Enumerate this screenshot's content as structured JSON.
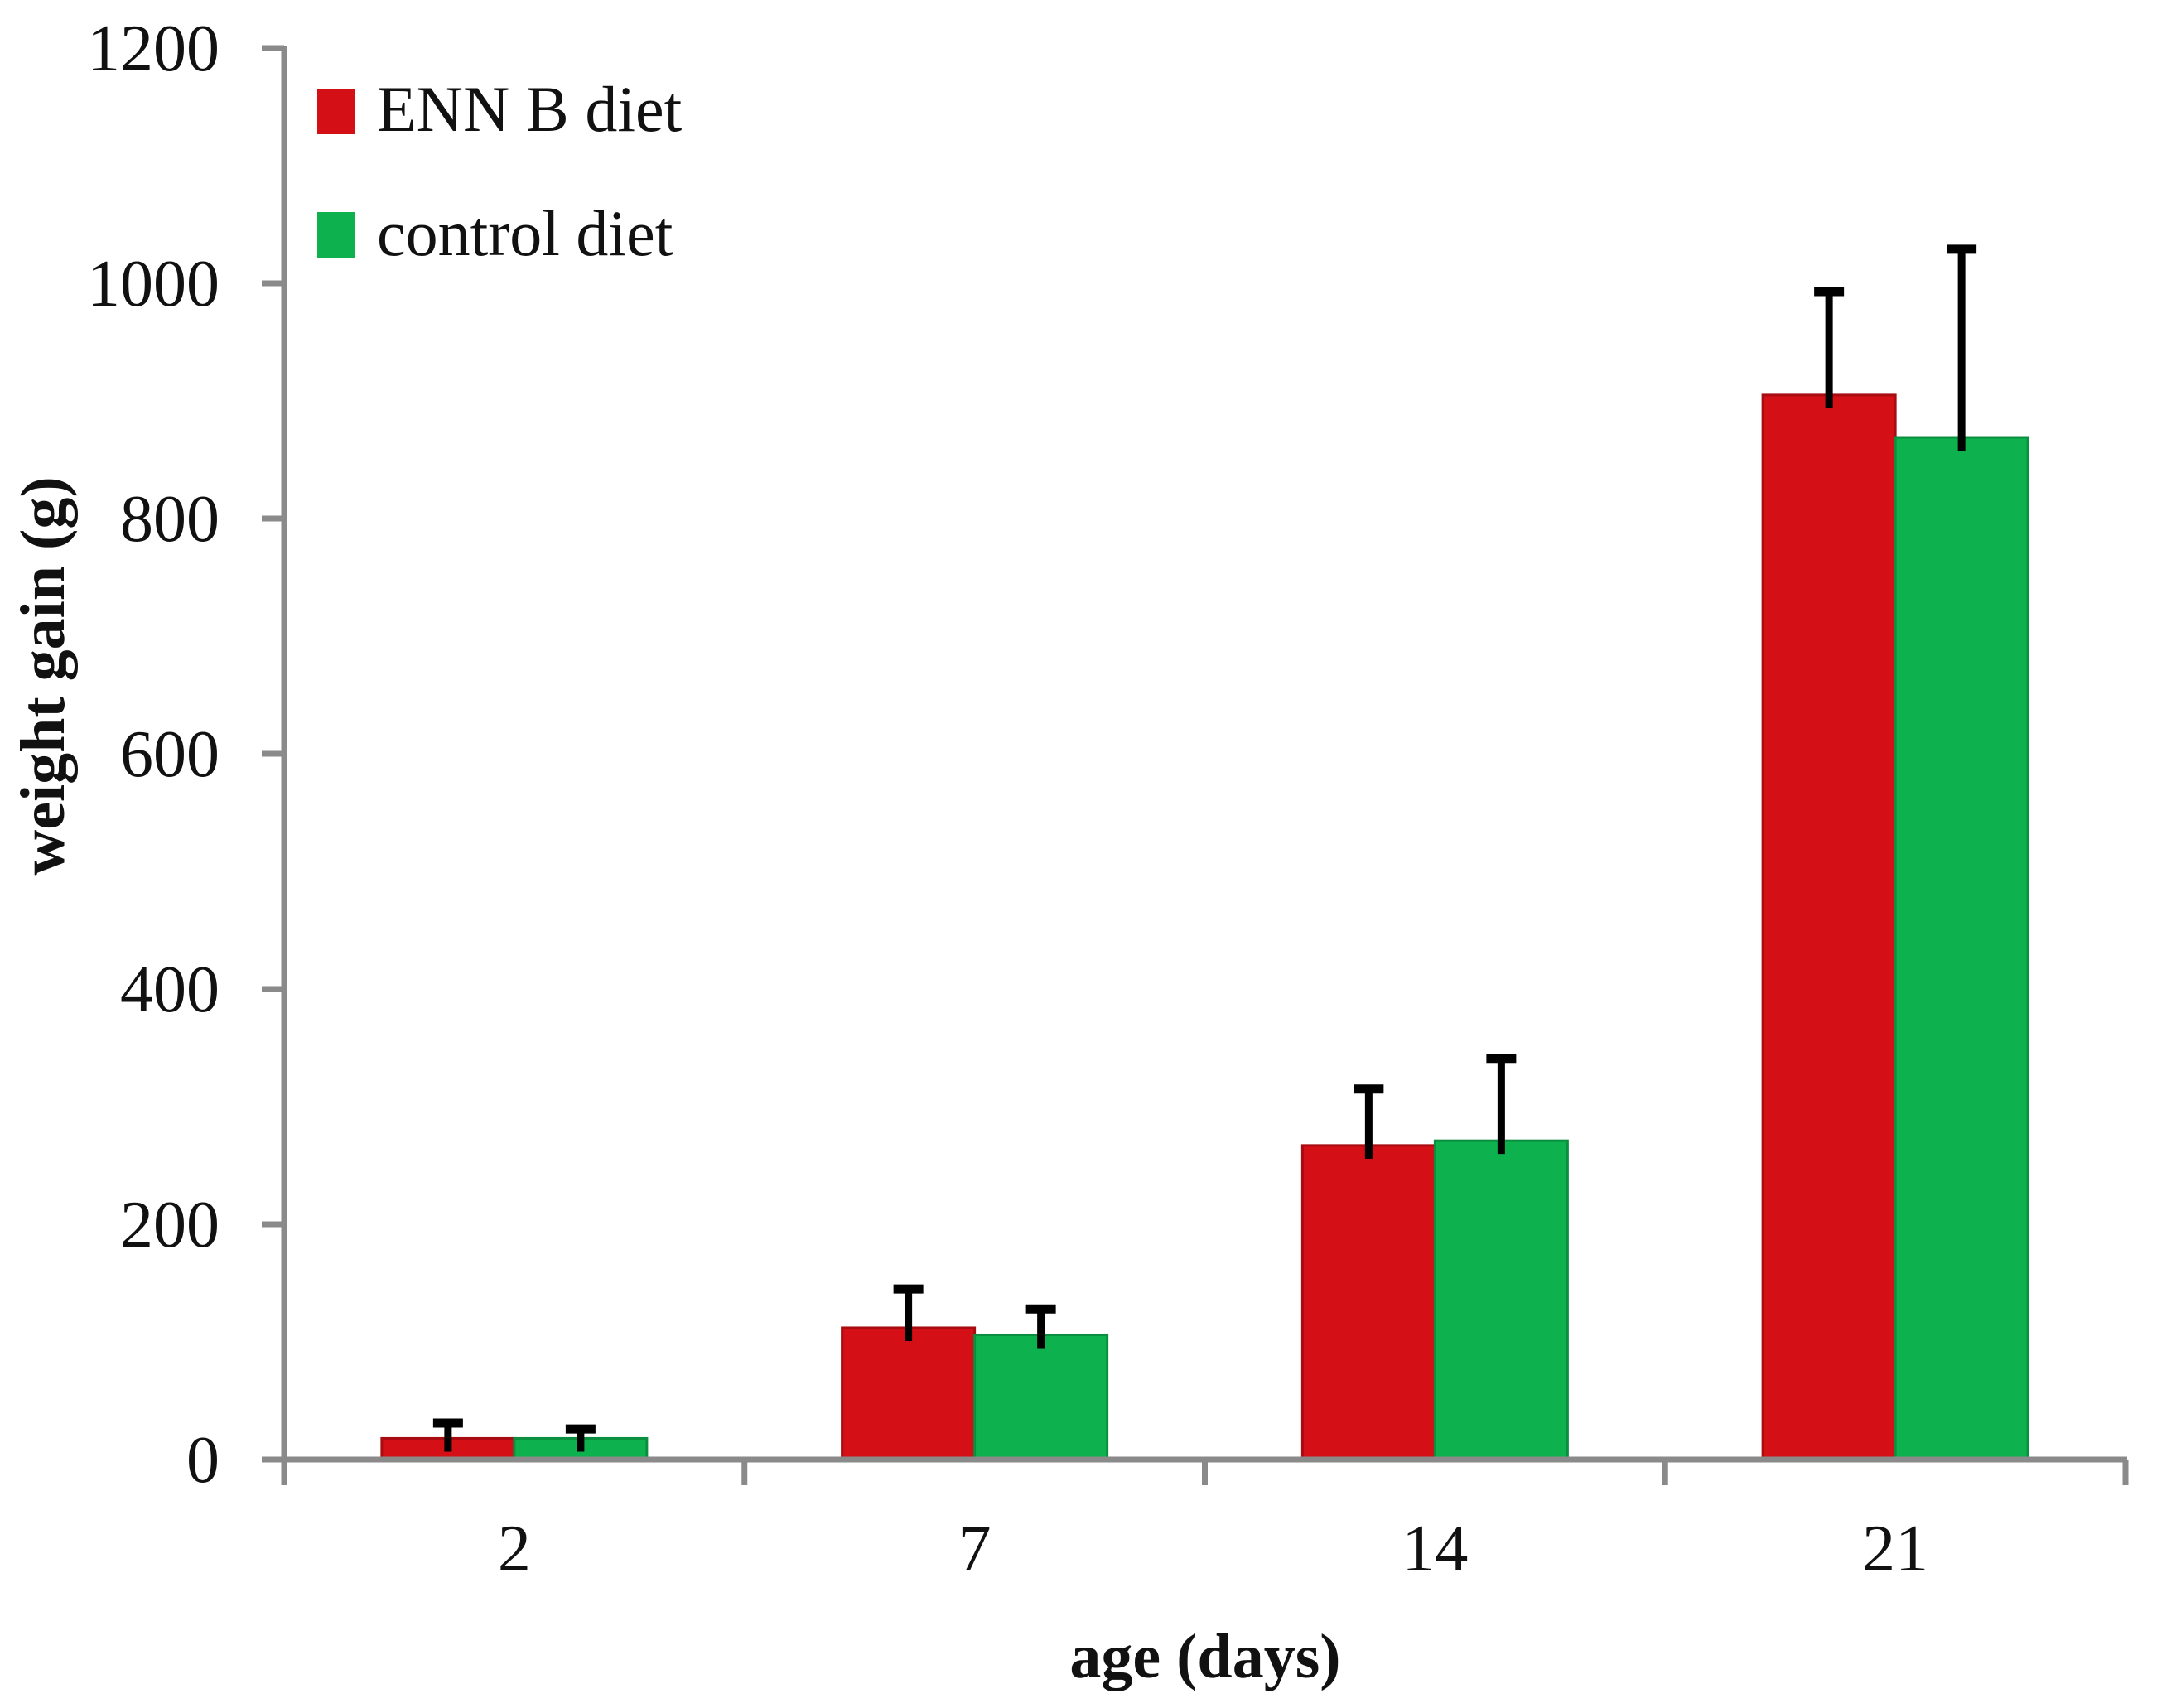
{
  "chart_data": {
    "type": "bar",
    "title": "",
    "xlabel": "age (days)",
    "ylabel": "weight gain (g)",
    "categories": [
      "2",
      "7",
      "14",
      "21"
    ],
    "series": [
      {
        "name": "ENN B diet",
        "color": "#d40f16",
        "edge_color": "#a80b10",
        "values": [
          18,
          112,
          267,
          905
        ],
        "errors_plus": [
          13,
          33,
          48,
          88
        ]
      },
      {
        "name": "control diet",
        "color": "#0db14e",
        "edge_color": "#0a8f40",
        "values": [
          18,
          106,
          271,
          869
        ],
        "errors_plus": [
          8,
          22,
          70,
          160
        ]
      }
    ],
    "ylim": [
      0,
      1200
    ],
    "y_ticks": [
      0,
      200,
      400,
      600,
      800,
      1000,
      1200
    ],
    "grid": false,
    "error_bars": "plus-only",
    "legend_position": "top-left",
    "axis_color": "#8a8a8a",
    "error_bar_color": "#000000"
  }
}
